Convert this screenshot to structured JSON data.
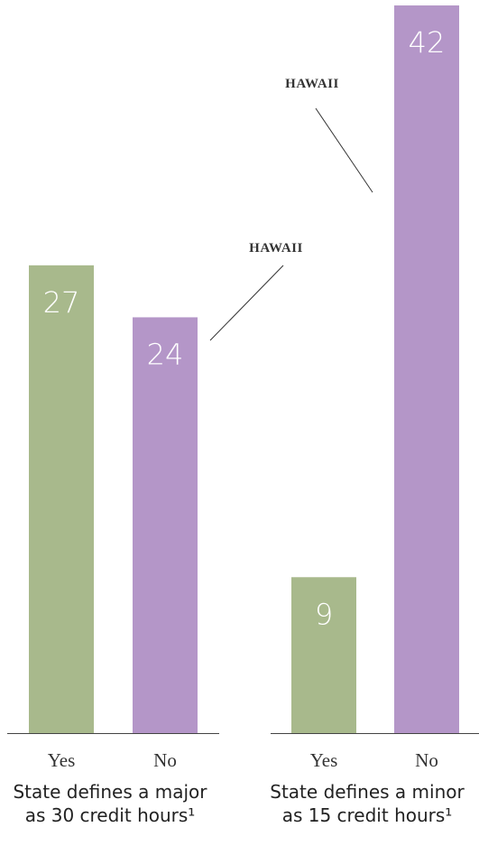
{
  "chart_data": [
    {
      "type": "bar",
      "title": "State defines a major as 30 credit hours¹",
      "categories": [
        "Yes",
        "No"
      ],
      "values": [
        27,
        24
      ],
      "colors": [
        "#a8b98c",
        "#b496c8"
      ],
      "annotation": "HAWAII"
    },
    {
      "type": "bar",
      "title": "State defines a minor as 15 credit hours¹",
      "categories": [
        "Yes",
        "No"
      ],
      "values": [
        9,
        42
      ],
      "colors": [
        "#a8b98c",
        "#b496c8"
      ],
      "annotation": "HAWAII"
    }
  ]
}
